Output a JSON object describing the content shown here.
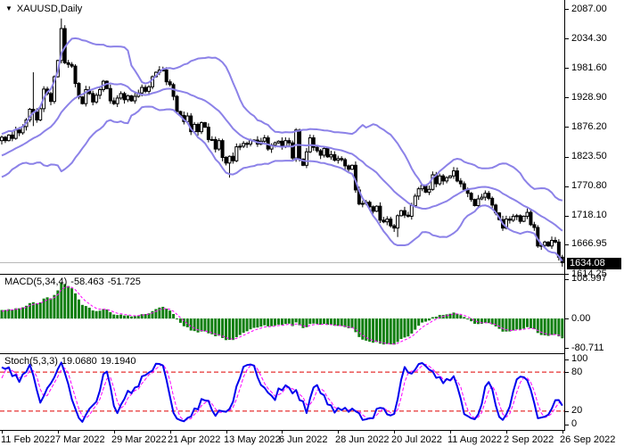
{
  "window": {
    "title": "XAUUSD,Daily",
    "dropdown_icon": "▼"
  },
  "price_axis": {
    "ticks": [
      "2087.00",
      "2034.30",
      "1981.60",
      "1928.90",
      "1876.20",
      "1823.50",
      "1770.80",
      "1718.10",
      "1666.95",
      "1614.25"
    ],
    "current": "1634.08"
  },
  "indicators": {
    "macd": {
      "name": "MACD(5,34,4)",
      "value": "-58.463",
      "signal": "-51.725",
      "axis_ticks": [
        "108.997",
        "0.00",
        "-80.711"
      ]
    },
    "stoch": {
      "name": "Stoch(5,3,3)",
      "k": "19.0680",
      "d": "19.1940",
      "axis_ticks": [
        "100",
        "80",
        "20",
        "0"
      ]
    }
  },
  "date_axis": {
    "labels": [
      "11 Feb 2022",
      "7 Mar 2022",
      "29 Mar 2022",
      "21 Apr 2022",
      "13 May 2022",
      "6 Jun 2022",
      "28 Jun 2022",
      "20 Jul 2022",
      "11 Aug 2022",
      "2 Sep 2022",
      "26 Sep 2022"
    ]
  },
  "colors": {
    "background": "#ffffff",
    "candle_up_fill": "#ffffff",
    "candle_down_fill": "#000000",
    "candle_outline": "#000000",
    "bollinger": "#8c82e8",
    "current_price_line": "#b8b8b8",
    "price_tag_bg": "#000000",
    "price_tag_text": "#ffffff",
    "macd_histogram": "#0f7e0f",
    "macd_signal": "#ff00ff",
    "stoch_k": "#0000ee",
    "stoch_d": "#ff00ff",
    "stoch_levels": "#e00000",
    "zero_line": "#c8c8c8"
  },
  "chart_data": {
    "type": "candlestick+indicators",
    "symbol": "XAUUSD",
    "timeframe": "Daily",
    "title": "XAUUSD,Daily",
    "y_axis": {
      "min": 1614.25,
      "max": 2087.0,
      "tick_values": [
        2087.0,
        2034.3,
        1981.6,
        1928.9,
        1876.2,
        1823.5,
        1770.8,
        1718.1,
        1666.95,
        1614.25
      ],
      "current_price": 1634.08
    },
    "macd_axis": {
      "max": 108.997,
      "min": -80.711,
      "tick_values": [
        108.997,
        0,
        -80.711
      ]
    },
    "stoch_axis": {
      "max": 100,
      "min": 0,
      "tick_values": [
        100,
        80,
        20,
        0
      ],
      "levels": [
        80,
        20
      ]
    },
    "x_tick_labels": [
      "11 Feb 2022",
      "7 Mar 2022",
      "29 Mar 2022",
      "21 Apr 2022",
      "13 May 2022",
      "6 Jun 2022",
      "28 Jun 2022",
      "20 Jul 2022",
      "11 Aug 2022",
      "2 Sep 2022",
      "26 Sep 2022"
    ],
    "bars_per_tick": 16,
    "lead_in_count": 40,
    "closes": [
      1796,
      1799,
      1803,
      1800,
      1806,
      1810,
      1807,
      1803,
      1800,
      1808,
      1812,
      1817,
      1820,
      1814,
      1821,
      1827,
      1830,
      1824,
      1817,
      1812,
      1807,
      1800,
      1794,
      1791,
      1801,
      1806,
      1811,
      1817,
      1822,
      1827,
      1831,
      1836,
      1841,
      1846,
      1838,
      1831,
      1827,
      1836,
      1846,
      1852,
      1858,
      1852,
      1862,
      1856,
      1871,
      1866,
      1877,
      1889,
      1908,
      1903,
      1889,
      1909,
      1944,
      1936,
      1922,
      1966,
      1995,
      2052,
      1991,
      1988,
      1985,
      1954,
      1930,
      1918,
      1943,
      1936,
      1921,
      1933,
      1943,
      1958,
      1945,
      1923,
      1918,
      1928,
      1936,
      1925,
      1932,
      1923,
      1931,
      1937,
      1947,
      1940,
      1948,
      1966,
      1974,
      1978,
      1978,
      1957,
      1952,
      1931,
      1904,
      1897,
      1886,
      1896,
      1868,
      1881,
      1868,
      1884,
      1876,
      1854,
      1854,
      1837,
      1852,
      1822,
      1812,
      1824,
      1816,
      1841,
      1842,
      1847,
      1846,
      1853,
      1853,
      1846,
      1851,
      1857,
      1837,
      1844,
      1848,
      1851,
      1841,
      1852,
      1848,
      1821,
      1871,
      1819,
      1808,
      1832,
      1857,
      1840,
      1834,
      1826,
      1838,
      1823,
      1827,
      1817,
      1820,
      1818,
      1807,
      1801,
      1808,
      1764,
      1739,
      1740,
      1742,
      1734,
      1726,
      1735,
      1710,
      1707,
      1712,
      1700,
      1696,
      1718,
      1727,
      1719,
      1717,
      1736,
      1753,
      1766,
      1772,
      1760,
      1765,
      1791,
      1775,
      1789,
      1780,
      1786,
      1789,
      1798,
      1780,
      1775,
      1765,
      1758,
      1747,
      1736,
      1748,
      1751,
      1758,
      1749,
      1737,
      1723,
      1711,
      1696,
      1712,
      1710,
      1717,
      1718,
      1708,
      1717,
      1724,
      1702,
      1697,
      1664,
      1665,
      1671,
      1664,
      1674,
      1671,
      1644,
      1634.08
    ],
    "extreme_overrides": {
      "49": {
        "high": 1974,
        "low": 1878
      },
      "57": {
        "high": 2070
      },
      "105": {
        "low": 1786
      },
      "153": {
        "low": 1680
      },
      "200": {
        "low": 1627
      }
    },
    "indicator_settings": {
      "bollinger": {
        "period": 20,
        "deviation": 2
      },
      "macd": {
        "fast": 5,
        "slow": 34,
        "signal": 4,
        "last_macd": -58.463,
        "last_signal": -51.725
      },
      "stochastic": {
        "k": 5,
        "slowing": 3,
        "d": 3,
        "last_k": 19.068,
        "last_d": 19.194
      }
    }
  }
}
